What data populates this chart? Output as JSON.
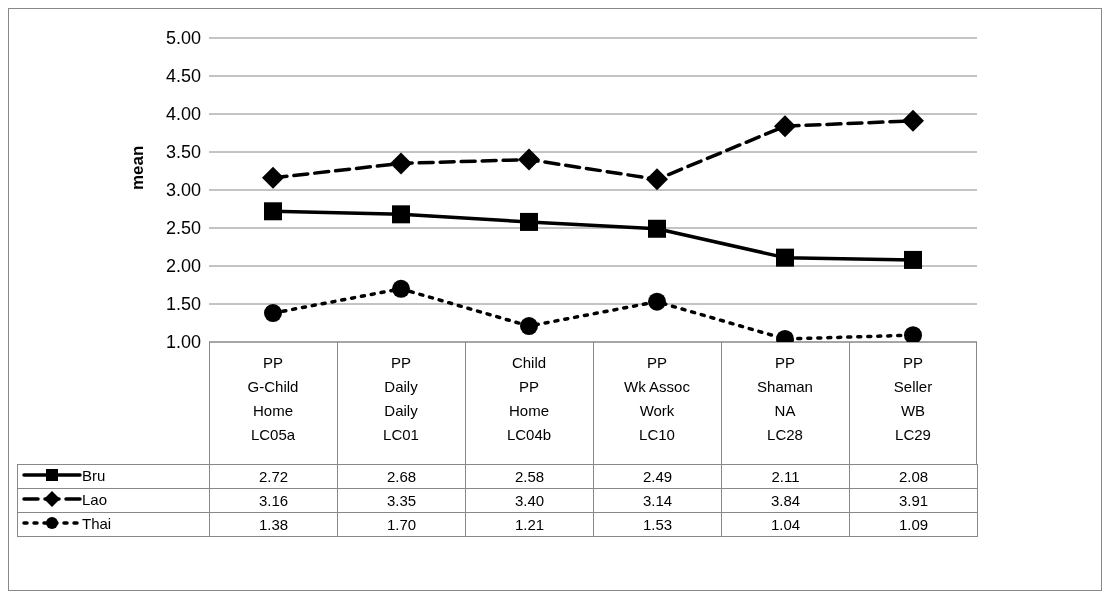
{
  "chart_data": {
    "type": "line",
    "ylabel": "mean",
    "categories": [
      "PP\nG-Child\nHome\nLC05a",
      "PP\nDaily\nDaily\nLC01",
      "Child\nPP\nHome\nLC04b",
      "PP\nWk Assoc\nWork\nLC10",
      "PP\nShaman\nNA\nLC28",
      "PP\nSeller\nWB\nLC29"
    ],
    "series": [
      {
        "name": "Bru",
        "color": "#000000",
        "marker": "square",
        "line_style": "solid",
        "values": [
          2.72,
          2.68,
          2.58,
          2.49,
          2.11,
          2.08
        ],
        "value_labels": [
          "2.72",
          "2.68",
          "2.58",
          "2.49",
          "2.11",
          "2.08"
        ]
      },
      {
        "name": "Lao",
        "color": "#000000",
        "marker": "diamond",
        "line_style": "dashed",
        "values": [
          3.16,
          3.35,
          3.4,
          3.14,
          3.84,
          3.91
        ],
        "value_labels": [
          "3.16",
          "3.35",
          "3.40",
          "3.14",
          "3.84",
          "3.91"
        ]
      },
      {
        "name": "Thai",
        "color": "#000000",
        "marker": "circle",
        "line_style": "dotted",
        "values": [
          1.38,
          1.7,
          1.21,
          1.53,
          1.04,
          1.09
        ],
        "value_labels": [
          "1.38",
          "1.70",
          "1.21",
          "1.53",
          "1.04",
          "1.09"
        ]
      }
    ],
    "ylim": [
      1,
      5
    ],
    "yticks": [
      {
        "value": 1,
        "label": "1.00"
      },
      {
        "value": 1.5,
        "label": "1.50"
      },
      {
        "value": 2,
        "label": "2.00"
      },
      {
        "value": 2.5,
        "label": "2.50"
      },
      {
        "value": 3,
        "label": "3.00"
      },
      {
        "value": 3.5,
        "label": "3.50"
      },
      {
        "value": 4,
        "label": "4.00"
      },
      {
        "value": 4.5,
        "label": "4.50"
      },
      {
        "value": 5,
        "label": "5.00"
      }
    ],
    "grid": "y",
    "legend": "bottom"
  }
}
